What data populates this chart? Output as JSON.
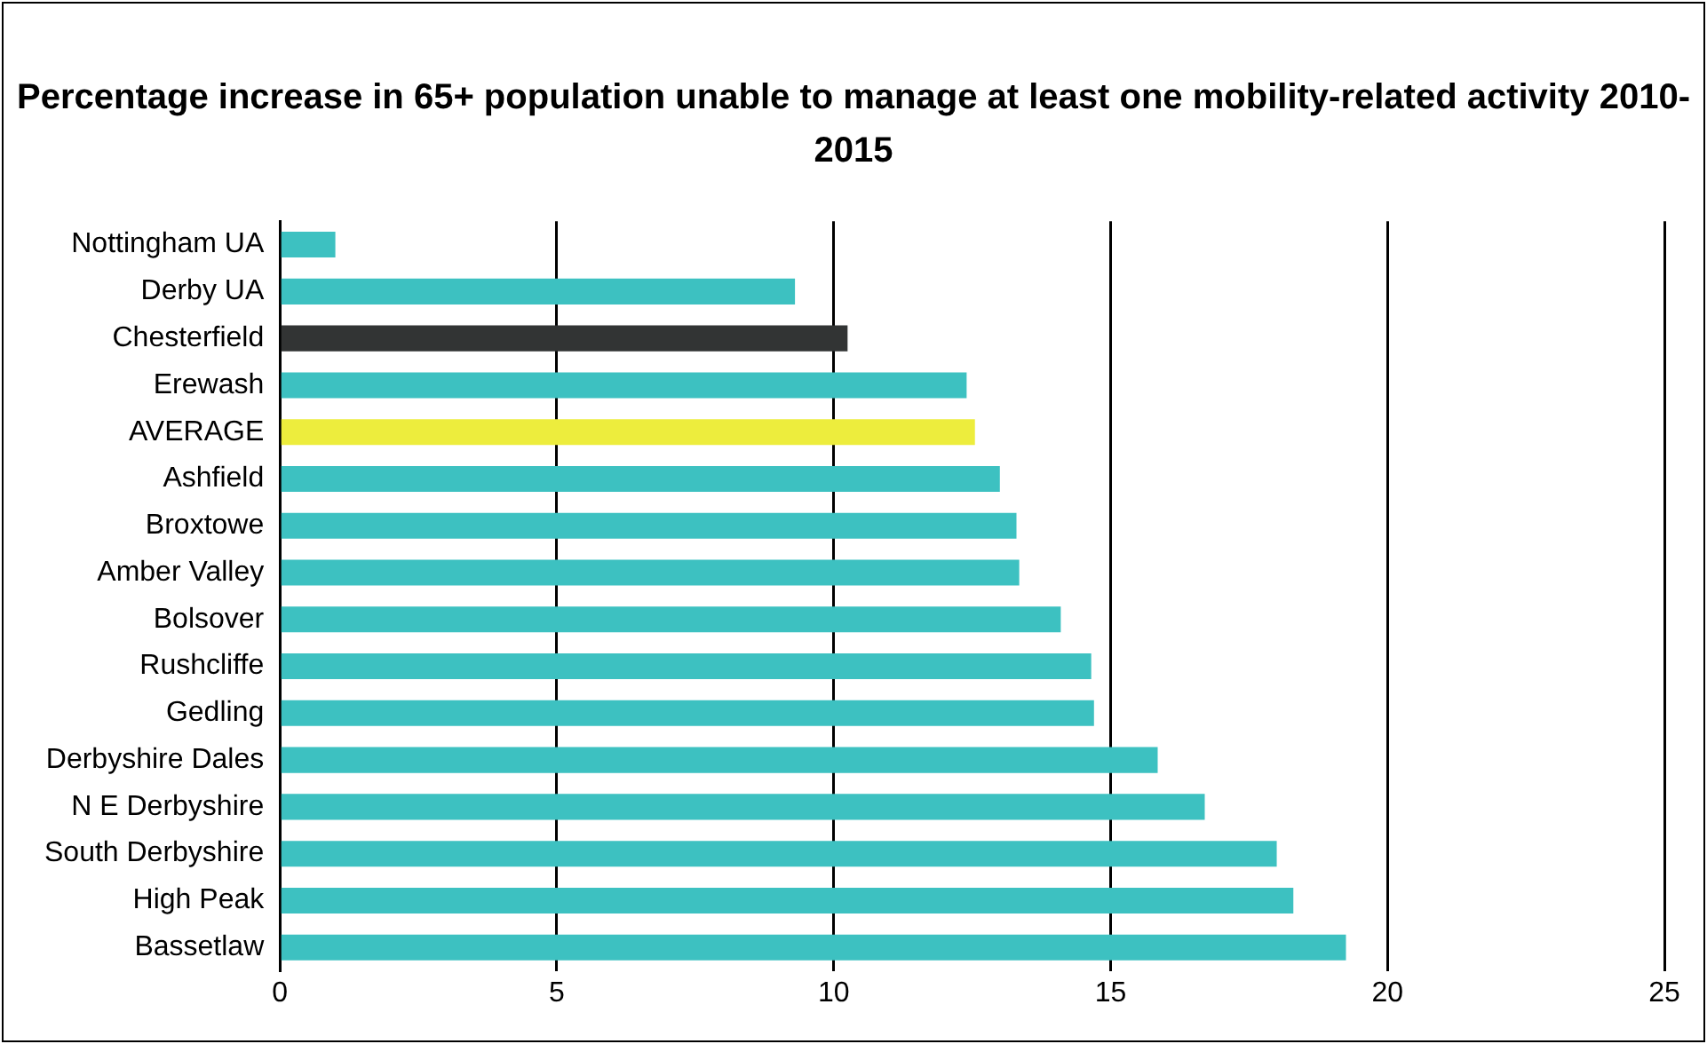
{
  "chart_data": {
    "type": "bar",
    "orientation": "horizontal",
    "title": "Percentage increase in 65+ population unable to manage at least one mobility-related activity 2010-2015",
    "categories": [
      "Nottingham UA",
      "Derby UA",
      "Chesterfield",
      "Erewash",
      "AVERAGE",
      "Ashfield",
      "Broxtowe",
      "Amber Valley",
      "Bolsover",
      "Rushcliffe",
      "Gedling",
      "Derbyshire Dales",
      "N E Derbyshire",
      "South Derbyshire",
      "High Peak",
      "Bassetlaw"
    ],
    "values": [
      1.0,
      9.3,
      10.25,
      12.4,
      12.55,
      13.0,
      13.3,
      13.35,
      14.1,
      14.65,
      14.7,
      15.85,
      16.7,
      18.0,
      18.3,
      19.25
    ],
    "colors": [
      "#3dc1c1",
      "#3dc1c1",
      "#323434",
      "#3dc1c1",
      "#eded3d",
      "#3dc1c1",
      "#3dc1c1",
      "#3dc1c1",
      "#3dc1c1",
      "#3dc1c1",
      "#3dc1c1",
      "#3dc1c1",
      "#3dc1c1",
      "#3dc1c1",
      "#3dc1c1",
      "#3dc1c1"
    ],
    "xlim": [
      0,
      25
    ],
    "xticks": [
      0,
      5,
      10,
      15,
      20,
      25
    ],
    "grid": "x",
    "legend": false
  }
}
